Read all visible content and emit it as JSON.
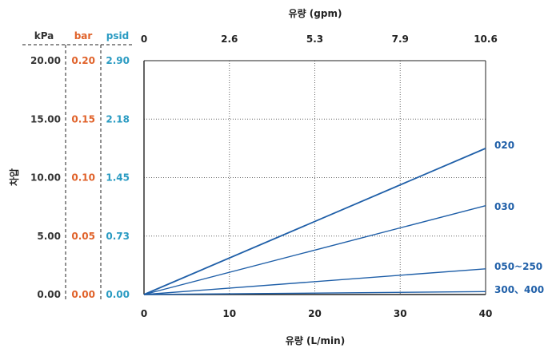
{
  "colors": {
    "kpa": "#333333",
    "bar": "#e0622a",
    "psid": "#2a9bc2",
    "series": "#1f5fa8",
    "grid": "#666666",
    "axis": "#222222"
  },
  "chart_data": {
    "type": "line",
    "xlabel": "유량 (L/min)",
    "x2label": "유량 (gpm)",
    "ylabel": "차압",
    "x_ticks": [
      "0",
      "10",
      "20",
      "30",
      "40"
    ],
    "x2_ticks": [
      "0",
      "2.6",
      "5.3",
      "7.9",
      "10.6"
    ],
    "xlim": [
      0,
      40
    ],
    "ylim": [
      0,
      20
    ],
    "grid": true,
    "y_axes": [
      {
        "unit": "kPa",
        "ticks": [
          "0.00",
          "5.00",
          "10.00",
          "15.00",
          "20.00"
        ]
      },
      {
        "unit": "bar",
        "ticks": [
          "0.00",
          "0.05",
          "0.10",
          "0.15",
          "0.20"
        ]
      },
      {
        "unit": "psid",
        "ticks": [
          "0.00",
          "0.73",
          "1.45",
          "2.18",
          "2.90"
        ]
      }
    ],
    "series": [
      {
        "name": "020",
        "x": [
          0,
          40
        ],
        "y": [
          0,
          12.5
        ]
      },
      {
        "name": "030",
        "x": [
          0,
          40
        ],
        "y": [
          0,
          7.6
        ]
      },
      {
        "name": "050~250",
        "x": [
          0,
          40
        ],
        "y": [
          0,
          2.2
        ]
      },
      {
        "name": "300、400",
        "x": [
          0,
          40
        ],
        "y": [
          0,
          0.25
        ]
      }
    ]
  }
}
